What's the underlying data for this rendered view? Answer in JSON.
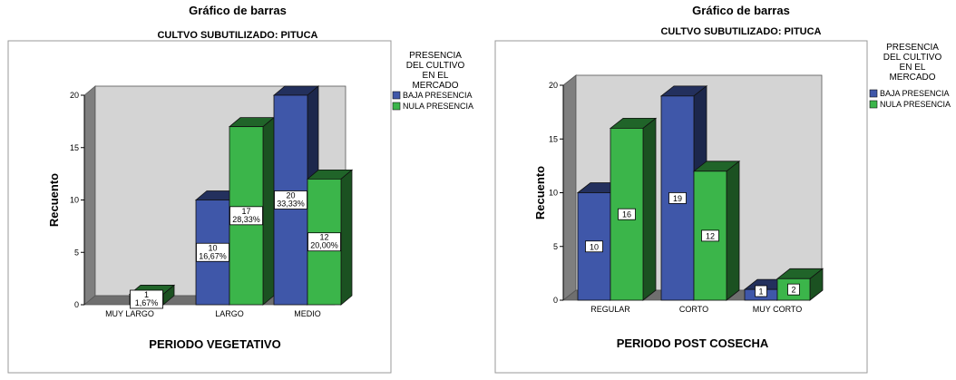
{
  "chart_data": [
    {
      "type": "bar",
      "title": "Gráfico de barras",
      "subtitle": "CULTVO SUBUTILIZADO: PITUCA",
      "xlabel": "PERIODO VEGETATIVO",
      "ylabel": "Recuento",
      "ylim": [
        0,
        20
      ],
      "yticks": [
        "0",
        "5",
        "10",
        "15",
        "20"
      ],
      "grid": false,
      "legend_position": "right",
      "legend_title": [
        "PRESENCIA",
        "DEL CULTIVO",
        "EN EL",
        "MERCADO"
      ],
      "categories": [
        "MUY LARGO",
        "LARGO",
        "MEDIO"
      ],
      "series": [
        {
          "name": "BAJA PRESENCIA",
          "color": "#3f57a9",
          "values": [
            0,
            10,
            20
          ],
          "labels": [
            [],
            [
              "10",
              "16,67%"
            ],
            [
              "20",
              "33,33%"
            ]
          ]
        },
        {
          "name": "NULA PRESENCIA",
          "color": "#3bb54a",
          "values": [
            1,
            17,
            12
          ],
          "labels": [
            [
              "1",
              "1,67%"
            ],
            [
              "17",
              "28,33%"
            ],
            [
              "12",
              "20,00%"
            ]
          ]
        }
      ]
    },
    {
      "type": "bar",
      "title": "Gráfico de barras",
      "subtitle": "CULTVO SUBUTILIZADO: PITUCA",
      "xlabel": "PERIODO POST COSECHA",
      "ylabel": "Recuento",
      "ylim": [
        0,
        20
      ],
      "yticks": [
        "0",
        "5",
        "10",
        "15",
        "20"
      ],
      "grid": false,
      "legend_position": "right",
      "legend_title": [
        "PRESENCIA",
        "DEL CULTIVO",
        "EN EL",
        "MERCADO"
      ],
      "categories": [
        "REGULAR",
        "CORTO",
        "MUY CORTO"
      ],
      "series": [
        {
          "name": "BAJA PRESENCIA",
          "color": "#3f57a9",
          "values": [
            10,
            19,
            1
          ],
          "labels": [
            [
              "10"
            ],
            [
              "19"
            ],
            [
              "1"
            ]
          ]
        },
        {
          "name": "NULA PRESENCIA",
          "color": "#3bb54a",
          "values": [
            16,
            12,
            2
          ],
          "labels": [
            [
              "16"
            ],
            [
              "12"
            ],
            [
              "2"
            ]
          ]
        }
      ]
    }
  ]
}
